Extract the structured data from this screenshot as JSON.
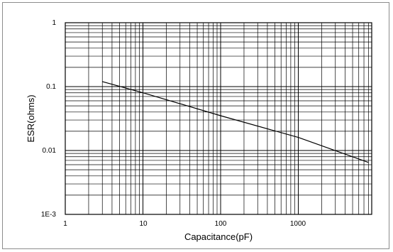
{
  "chart_data": {
    "type": "line",
    "xlabel": "Capacitance(pF)",
    "ylabel": "ESR(ohms)",
    "x_scale": "log",
    "y_scale": "log",
    "xlim": [
      1,
      8000
    ],
    "ylim": [
      0.001,
      1
    ],
    "x_tick_labels": [
      "1",
      "10",
      "100",
      "1000"
    ],
    "y_tick_labels": [
      "1",
      "0.1",
      "0.01",
      "1E-3"
    ],
    "grid": true,
    "series": [
      {
        "x": [
          3,
          10,
          100,
          1000,
          8000
        ],
        "y": [
          0.12,
          0.08,
          0.035,
          0.016,
          0.0065
        ]
      }
    ]
  }
}
